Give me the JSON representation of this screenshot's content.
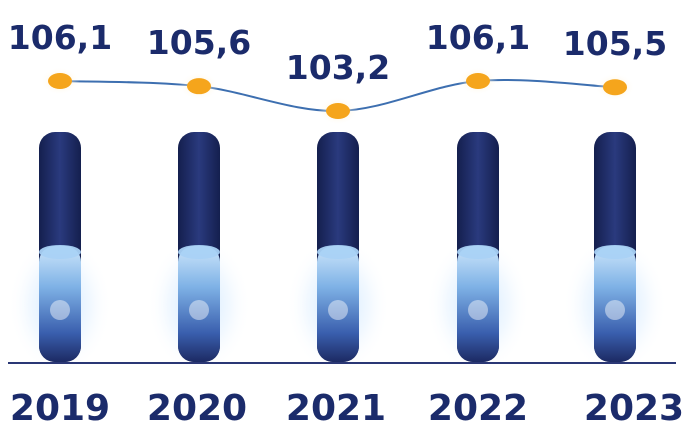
{
  "chart_data": {
    "type": "line",
    "categories": [
      "2019",
      "2020",
      "2021",
      "2022",
      "2023"
    ],
    "series": [
      {
        "values": [
          106.1,
          105.6,
          103.2,
          106.1,
          105.5
        ],
        "labels": [
          "106,1",
          "105,6",
          "103,2",
          "106,1",
          "105,5"
        ]
      }
    ],
    "title": "",
    "xlabel": "",
    "ylabel": "",
    "grid": false,
    "colors": {
      "line": "#3d6fb0",
      "marker": "#f5a51c",
      "bar_dark": "#1c2a63",
      "bar_light": "#a9d2f5",
      "axis": "#2a3775",
      "text": "#1b2b6b"
    }
  }
}
